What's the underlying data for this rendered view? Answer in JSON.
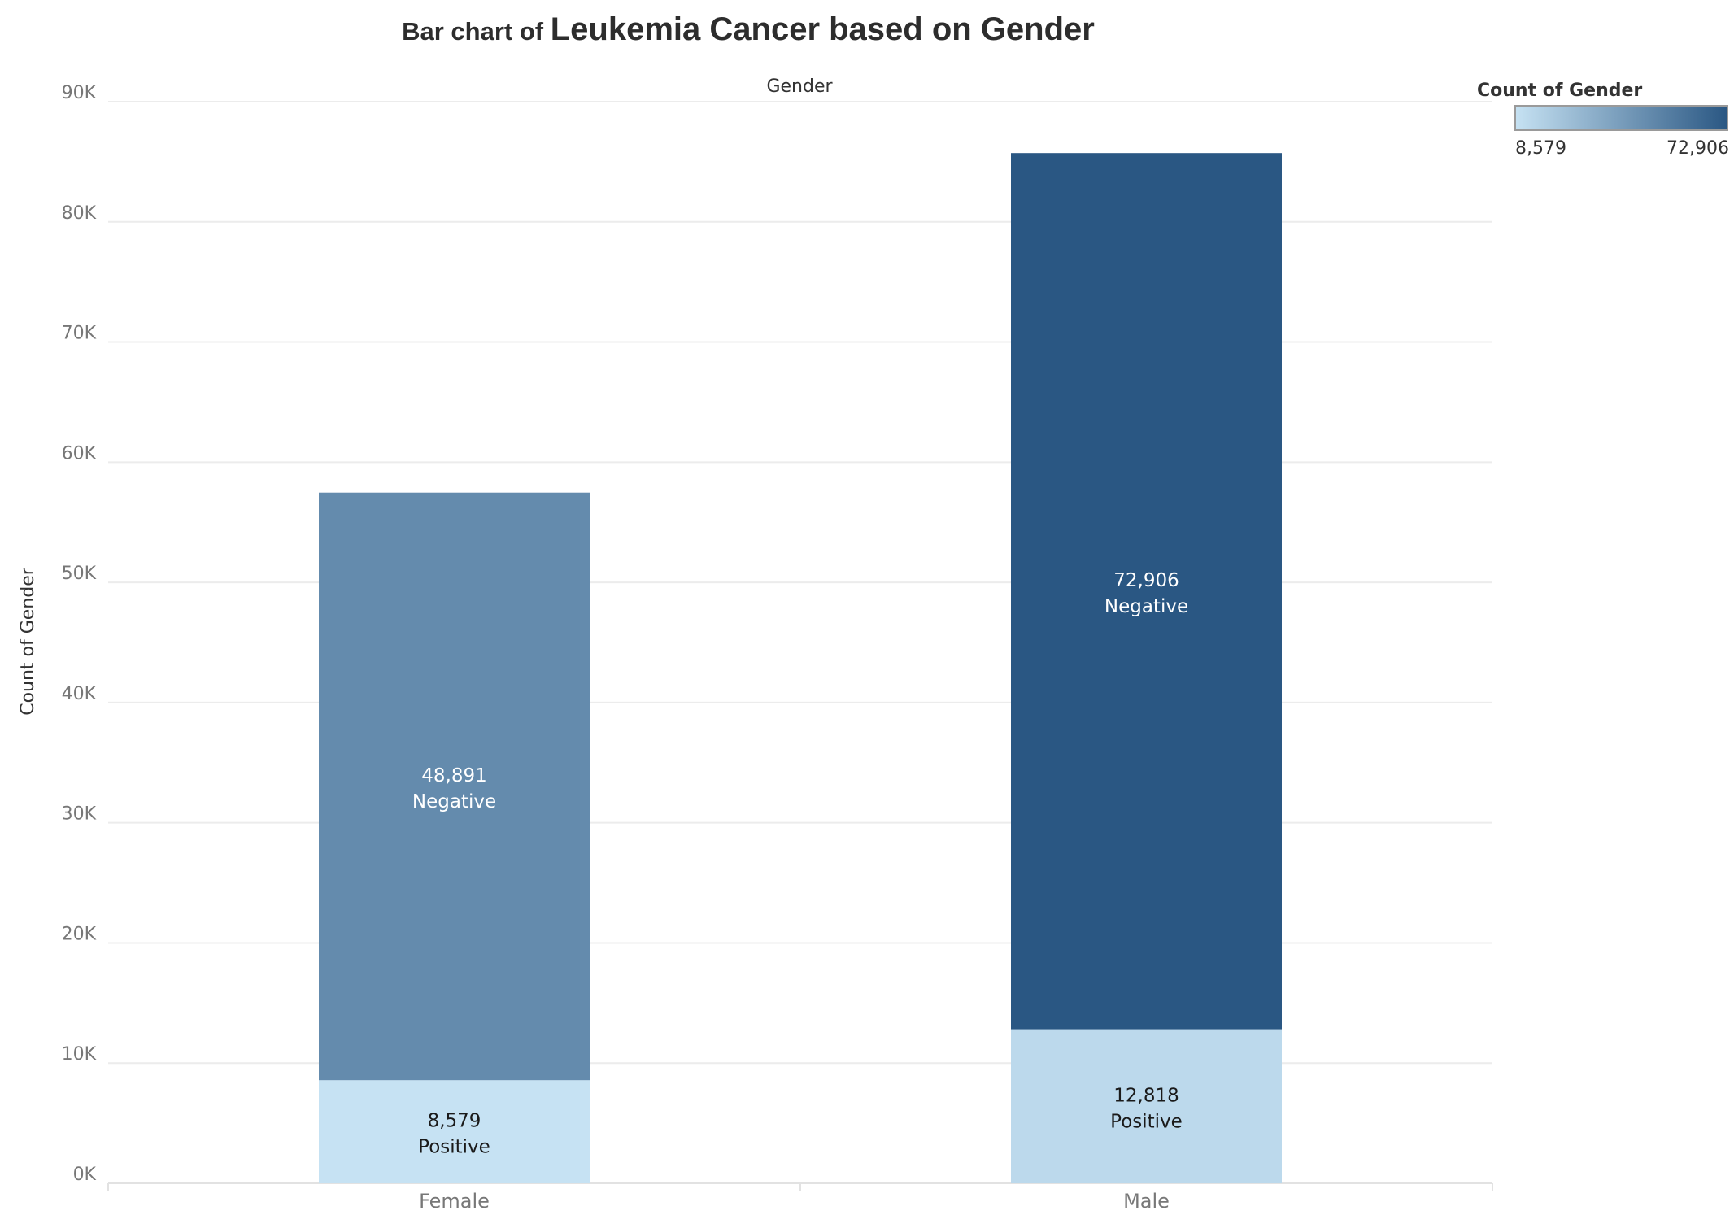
{
  "title": {
    "prefix": "Bar chart of ",
    "main": "Leukemia Cancer based on Gender"
  },
  "chart_data": {
    "type": "bar",
    "stacked": true,
    "column_header": "Gender",
    "categories": [
      "Female",
      "Male"
    ],
    "series": [
      {
        "name": "Positive",
        "values": [
          8579,
          12818
        ]
      },
      {
        "name": "Negative",
        "values": [
          48891,
          72906
        ]
      }
    ],
    "segment_labels": [
      [
        "8,579",
        "12,818"
      ],
      [
        "48,891",
        "72,906"
      ]
    ],
    "ylabel": "Count of Gender",
    "ylim": [
      0,
      90000
    ],
    "yticks": [
      0,
      10000,
      20000,
      30000,
      40000,
      50000,
      60000,
      70000,
      80000,
      90000
    ],
    "ytick_labels": [
      "0K",
      "10K",
      "20K",
      "30K",
      "40K",
      "50K",
      "60K",
      "70K",
      "80K",
      "90K"
    ],
    "grid": true,
    "colors": {
      "low": "#c6e2f3",
      "high": "#2a5783"
    },
    "legend": {
      "title": "Count of Gender",
      "min_label": "8,579",
      "max_label": "72,906",
      "min": 8579,
      "max": 72906,
      "placement": "top-right"
    }
  }
}
